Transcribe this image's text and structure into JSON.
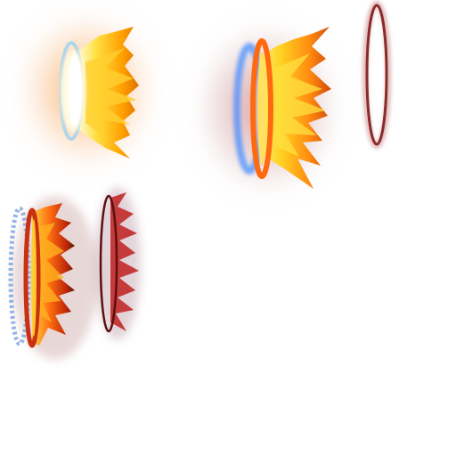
{
  "sprite_sheet": {
    "background": "#ffffff",
    "sprites": [
      {
        "name": "burst-frame-1",
        "colors": {
          "core": "#fffbe0",
          "ring": "#9ad2f0",
          "flame": "#ffb000",
          "glow": "#f5a060"
        }
      },
      {
        "name": "burst-frame-2",
        "colors": {
          "core": "#ffe060",
          "ring": "#4a8fff",
          "flame": "#ff7a10",
          "glow": "#a04040"
        }
      },
      {
        "name": "burst-frame-3",
        "colors": {
          "ring": "#8a2a2a",
          "glow": "#c07070"
        }
      },
      {
        "name": "burst-frame-4",
        "colors": {
          "core": "#ffcc30",
          "ring": "#7aa0e0",
          "flame": "#e04010",
          "glow": "#6a2010"
        }
      },
      {
        "name": "burst-frame-5",
        "colors": {
          "ring": "#5a1010",
          "flame": "#c02020",
          "glow": "#7a4050"
        }
      }
    ]
  }
}
